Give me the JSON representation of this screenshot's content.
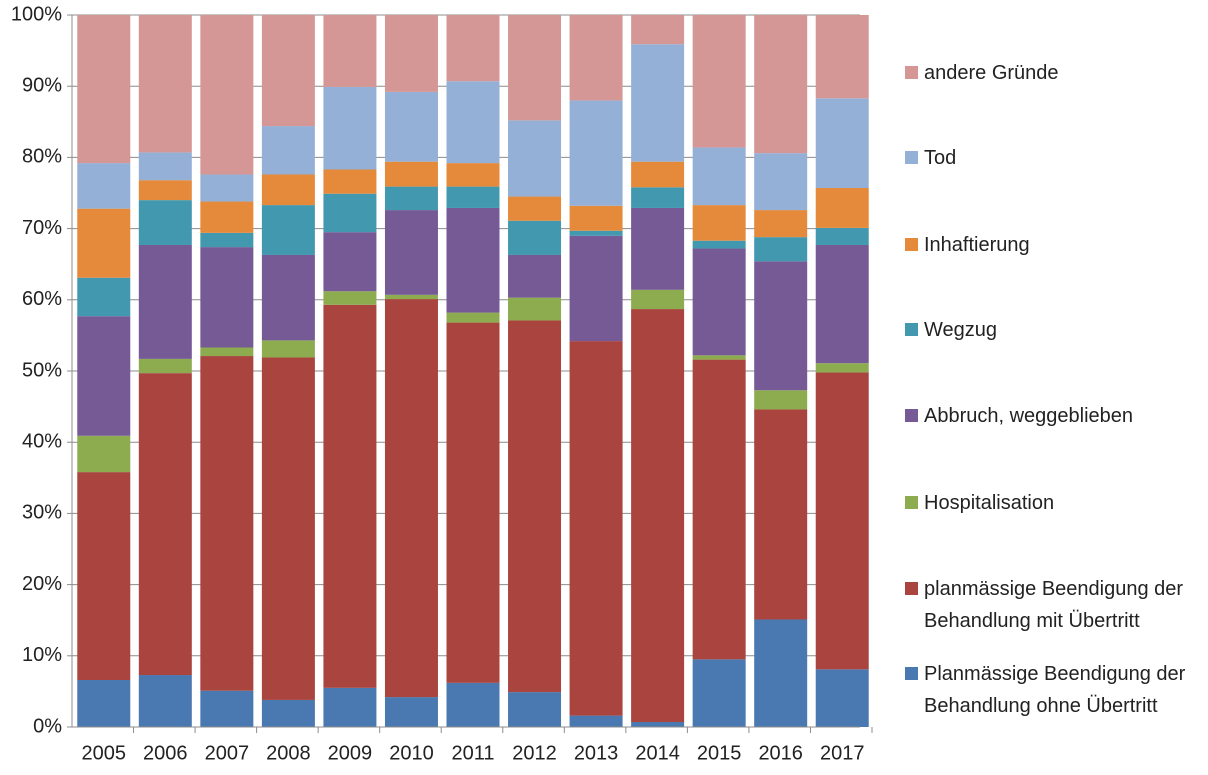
{
  "chart_data": {
    "type": "stacked_bar",
    "categories": [
      "2005",
      "2006",
      "2007",
      "2008",
      "2009",
      "2010",
      "2011",
      "2012",
      "2013",
      "2014",
      "2015",
      "2016",
      "2017"
    ],
    "ylim": [
      0,
      100
    ],
    "yticks": [
      {
        "value": 0,
        "label": "0%"
      },
      {
        "value": 10,
        "label": "10%"
      },
      {
        "value": 20,
        "label": "20%"
      },
      {
        "value": 30,
        "label": "30%"
      },
      {
        "value": 40,
        "label": "40%"
      },
      {
        "value": 50,
        "label": "50%"
      },
      {
        "value": 60,
        "label": "60%"
      },
      {
        "value": 70,
        "label": "70%"
      },
      {
        "value": 80,
        "label": "80%"
      },
      {
        "value": 90,
        "label": "90%"
      },
      {
        "value": 100,
        "label": "100%"
      }
    ],
    "grid": true,
    "legend": "right",
    "series": [
      {
        "name": "Planmässige Beendigung der Behandlung ohne Übertritt",
        "color": "#4a78b0",
        "values": [
          6.6,
          7.3,
          5.1,
          3.8,
          5.5,
          4.2,
          6.2,
          4.9,
          1.6,
          0.7,
          9.5,
          15.1,
          8.1
        ]
      },
      {
        "name": "planmässige Beendigung der Behandlung mit Übertritt",
        "color": "#a9443f",
        "values": [
          29.2,
          42.4,
          47.0,
          48.1,
          53.8,
          55.9,
          50.6,
          52.2,
          52.6,
          58.0,
          42.1,
          29.5,
          41.7
        ]
      },
      {
        "name": "Hospitalisation",
        "color": "#8dab4f",
        "values": [
          5.1,
          2.0,
          1.2,
          2.4,
          1.9,
          0.6,
          1.4,
          3.2,
          0,
          2.7,
          0.6,
          2.7,
          1.3
        ]
      },
      {
        "name": "Abbruch, weggeblieben",
        "color": "#755a95",
        "values": [
          16.8,
          16.0,
          14.1,
          12.0,
          8.3,
          11.9,
          14.7,
          6.0,
          14.8,
          11.5,
          15.0,
          18.1,
          16.6
        ]
      },
      {
        "name": "Wegzug",
        "color": "#4298ae",
        "values": [
          5.4,
          6.3,
          2.0,
          7.0,
          5.4,
          3.3,
          3.0,
          4.8,
          0.7,
          2.9,
          1.1,
          3.4,
          2.4
        ]
      },
      {
        "name": "Inhaftierung",
        "color": "#e5893a",
        "values": [
          9.7,
          2.8,
          4.4,
          4.3,
          3.4,
          3.5,
          3.3,
          3.4,
          3.5,
          3.6,
          5.0,
          3.8,
          5.6
        ]
      },
      {
        "name": "Tod",
        "color": "#95b0d6",
        "values": [
          6.4,
          3.9,
          3.8,
          6.8,
          11.6,
          9.8,
          11.5,
          10.7,
          14.8,
          16.5,
          8.1,
          8.0,
          12.6
        ]
      },
      {
        "name": "andere Gründe",
        "color": "#d59795",
        "values": [
          20.8,
          19.3,
          22.4,
          15.6,
          10.1,
          10.8,
          9.3,
          14.8,
          12.0,
          4.1,
          18.6,
          19.4,
          11.7
        ]
      }
    ]
  }
}
